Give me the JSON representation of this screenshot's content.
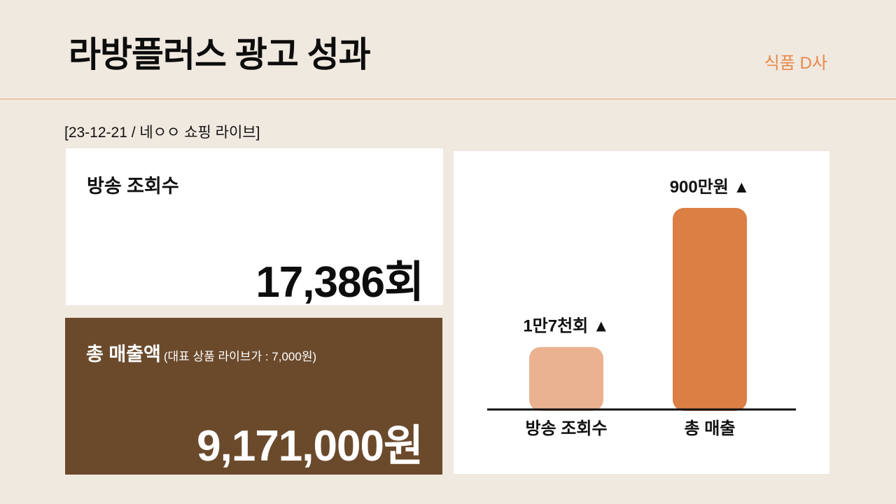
{
  "header": {
    "title": "라방플러스 광고 성과",
    "client": "식품 D사"
  },
  "broadcast_info": "[23-12-21 / 네ㅇㅇ 쇼핑 라이브]",
  "views_card": {
    "label": "방송 조회수",
    "value": "17,386회"
  },
  "revenue_card": {
    "label": "총 매출액",
    "note": "(대표 상품 라이브가 : 7,000원)",
    "value": "9,171,000원"
  },
  "colors": {
    "background": "#f0e9e0",
    "accent": "#e8894a",
    "revenue_card": "#6b4a2c",
    "bar_views": "#ebb292",
    "bar_revenue": "#dc7f45"
  },
  "chart_data": {
    "type": "bar",
    "categories": [
      "방송 조회수",
      "총 매출"
    ],
    "data_labels": [
      "1만7천회 ▲",
      "900만원 ▲"
    ],
    "values": [
      17386,
      9171000
    ],
    "relative_heights": [
      0.31,
      1.0
    ],
    "bar_colors": [
      "#ebb292",
      "#dc7f45"
    ],
    "grid": false,
    "title": "",
    "xlabel": "",
    "ylabel": ""
  }
}
